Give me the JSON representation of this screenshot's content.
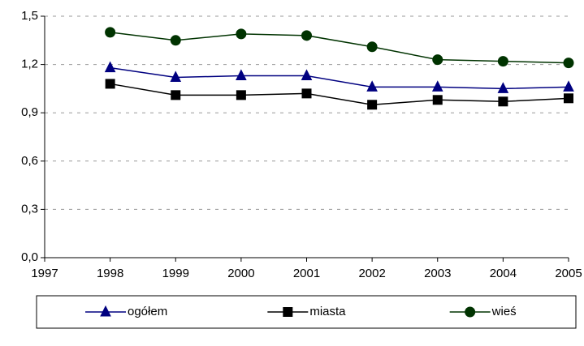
{
  "chart_data": {
    "type": "line",
    "x": [
      1998,
      1999,
      2000,
      2001,
      2002,
      2003,
      2004,
      2005
    ],
    "xlim": [
      1997,
      2005
    ],
    "xticks": [
      1997,
      1998,
      1999,
      2000,
      2001,
      2002,
      2003,
      2004,
      2005
    ],
    "ylim": [
      0,
      1.5
    ],
    "yticks": [
      {
        "value": 0,
        "label": "0,0"
      },
      {
        "value": 0.3,
        "label": "0,3"
      },
      {
        "value": 0.6,
        "label": "0,6"
      },
      {
        "value": 0.9,
        "label": "0,9"
      },
      {
        "value": 1.2,
        "label": "1,2"
      },
      {
        "value": 1.5,
        "label": "1,5"
      }
    ],
    "grid": true,
    "legend": "bottom",
    "series": [
      {
        "name": "ogółem",
        "color": "#000080",
        "marker": "triangle",
        "values": [
          1.18,
          1.12,
          1.13,
          1.13,
          1.06,
          1.06,
          1.05,
          1.06
        ]
      },
      {
        "name": "miasta",
        "color": "#000000",
        "marker": "square",
        "values": [
          1.08,
          1.01,
          1.01,
          1.02,
          0.95,
          0.98,
          0.97,
          0.99
        ]
      },
      {
        "name": "wieś",
        "color": "#003300",
        "marker": "circle",
        "values": [
          1.4,
          1.35,
          1.39,
          1.38,
          1.31,
          1.23,
          1.22,
          1.21
        ]
      }
    ]
  }
}
